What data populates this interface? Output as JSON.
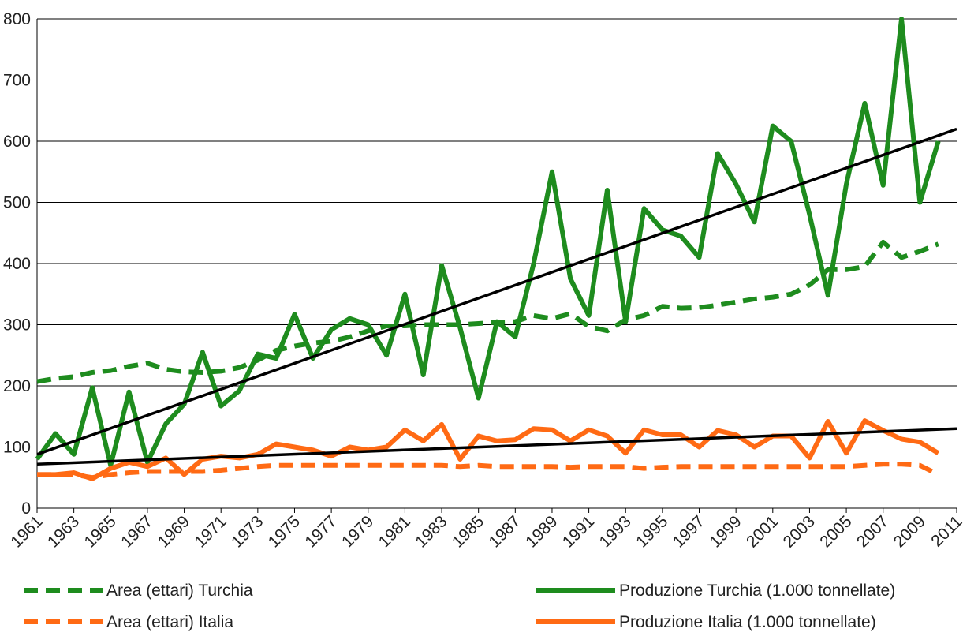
{
  "chart_data": {
    "type": "line",
    "xlim": [
      1961,
      2011
    ],
    "xticks": [
      1961,
      1963,
      1965,
      1967,
      1969,
      1971,
      1973,
      1975,
      1977,
      1979,
      1981,
      1983,
      1985,
      1987,
      1989,
      1991,
      1993,
      1995,
      1997,
      1999,
      2001,
      2003,
      2005,
      2007,
      2009,
      2011
    ],
    "ylim": [
      0,
      800
    ],
    "yticks": [
      0,
      100,
      200,
      300,
      400,
      500,
      600,
      700,
      800
    ],
    "grid": true,
    "x": [
      1961,
      1962,
      1963,
      1964,
      1965,
      1966,
      1967,
      1968,
      1969,
      1970,
      1971,
      1972,
      1973,
      1974,
      1975,
      1976,
      1977,
      1978,
      1979,
      1980,
      1981,
      1982,
      1983,
      1984,
      1985,
      1986,
      1987,
      1988,
      1989,
      1990,
      1991,
      1992,
      1993,
      1994,
      1995,
      1996,
      1997,
      1998,
      1999,
      2000,
      2001,
      2002,
      2003,
      2004,
      2005,
      2006,
      2007,
      2008,
      2009,
      2010
    ],
    "series": [
      {
        "name": "Area (ettari) Turchia",
        "color": "#1e8c1e",
        "dashed": true,
        "values": [
          207,
          212,
          215,
          222,
          225,
          232,
          237,
          227,
          223,
          222,
          224,
          230,
          242,
          258,
          265,
          270,
          273,
          280,
          290,
          298,
          298,
          300,
          300,
          300,
          302,
          304,
          305,
          315,
          310,
          318,
          297,
          290,
          308,
          315,
          330,
          327,
          328,
          332,
          337,
          342,
          345,
          350,
          365,
          390,
          390,
          395,
          435,
          410,
          420,
          432
        ]
      },
      {
        "name": "Produzione Turchia (1.000 tonnellate)",
        "color": "#1e8c1e",
        "dashed": false,
        "values": [
          80,
          122,
          88,
          197,
          70,
          190,
          75,
          138,
          170,
          255,
          167,
          192,
          252,
          245,
          317,
          245,
          292,
          310,
          300,
          250,
          350,
          218,
          397,
          295,
          180,
          305,
          280,
          400,
          550,
          375,
          315,
          520,
          305,
          490,
          455,
          445,
          410,
          580,
          530,
          468,
          625,
          600,
          480,
          348,
          530,
          662,
          528,
          800,
          500,
          600
        ]
      },
      {
        "name": "Area (ettari) Italia",
        "color": "#ff6a14",
        "dashed": true,
        "values": [
          55,
          55,
          55,
          50,
          55,
          58,
          60,
          60,
          60,
          60,
          62,
          65,
          68,
          70,
          70,
          70,
          70,
          70,
          70,
          70,
          70,
          70,
          70,
          68,
          70,
          68,
          68,
          68,
          68,
          67,
          68,
          68,
          68,
          65,
          67,
          68,
          68,
          68,
          68,
          68,
          68,
          68,
          68,
          68,
          68,
          70,
          72,
          72,
          70,
          55
        ]
      },
      {
        "name": "Produzione Italia (1.000 tonnellate)",
        "color": "#ff6a14",
        "dashed": false,
        "values": [
          55,
          55,
          58,
          48,
          65,
          75,
          68,
          82,
          55,
          80,
          85,
          82,
          88,
          105,
          100,
          95,
          85,
          100,
          95,
          100,
          128,
          110,
          137,
          80,
          118,
          110,
          112,
          130,
          128,
          110,
          128,
          118,
          90,
          128,
          120,
          120,
          100,
          127,
          120,
          100,
          118,
          118,
          82,
          142,
          90,
          143,
          127,
          113,
          108,
          90
        ]
      }
    ],
    "trendlines": [
      {
        "color": "#000000",
        "x": [
          1961,
          2011
        ],
        "values": [
          88,
          620
        ]
      },
      {
        "color": "#000000",
        "x": [
          1961,
          2011
        ],
        "values": [
          72,
          130
        ]
      }
    ]
  }
}
